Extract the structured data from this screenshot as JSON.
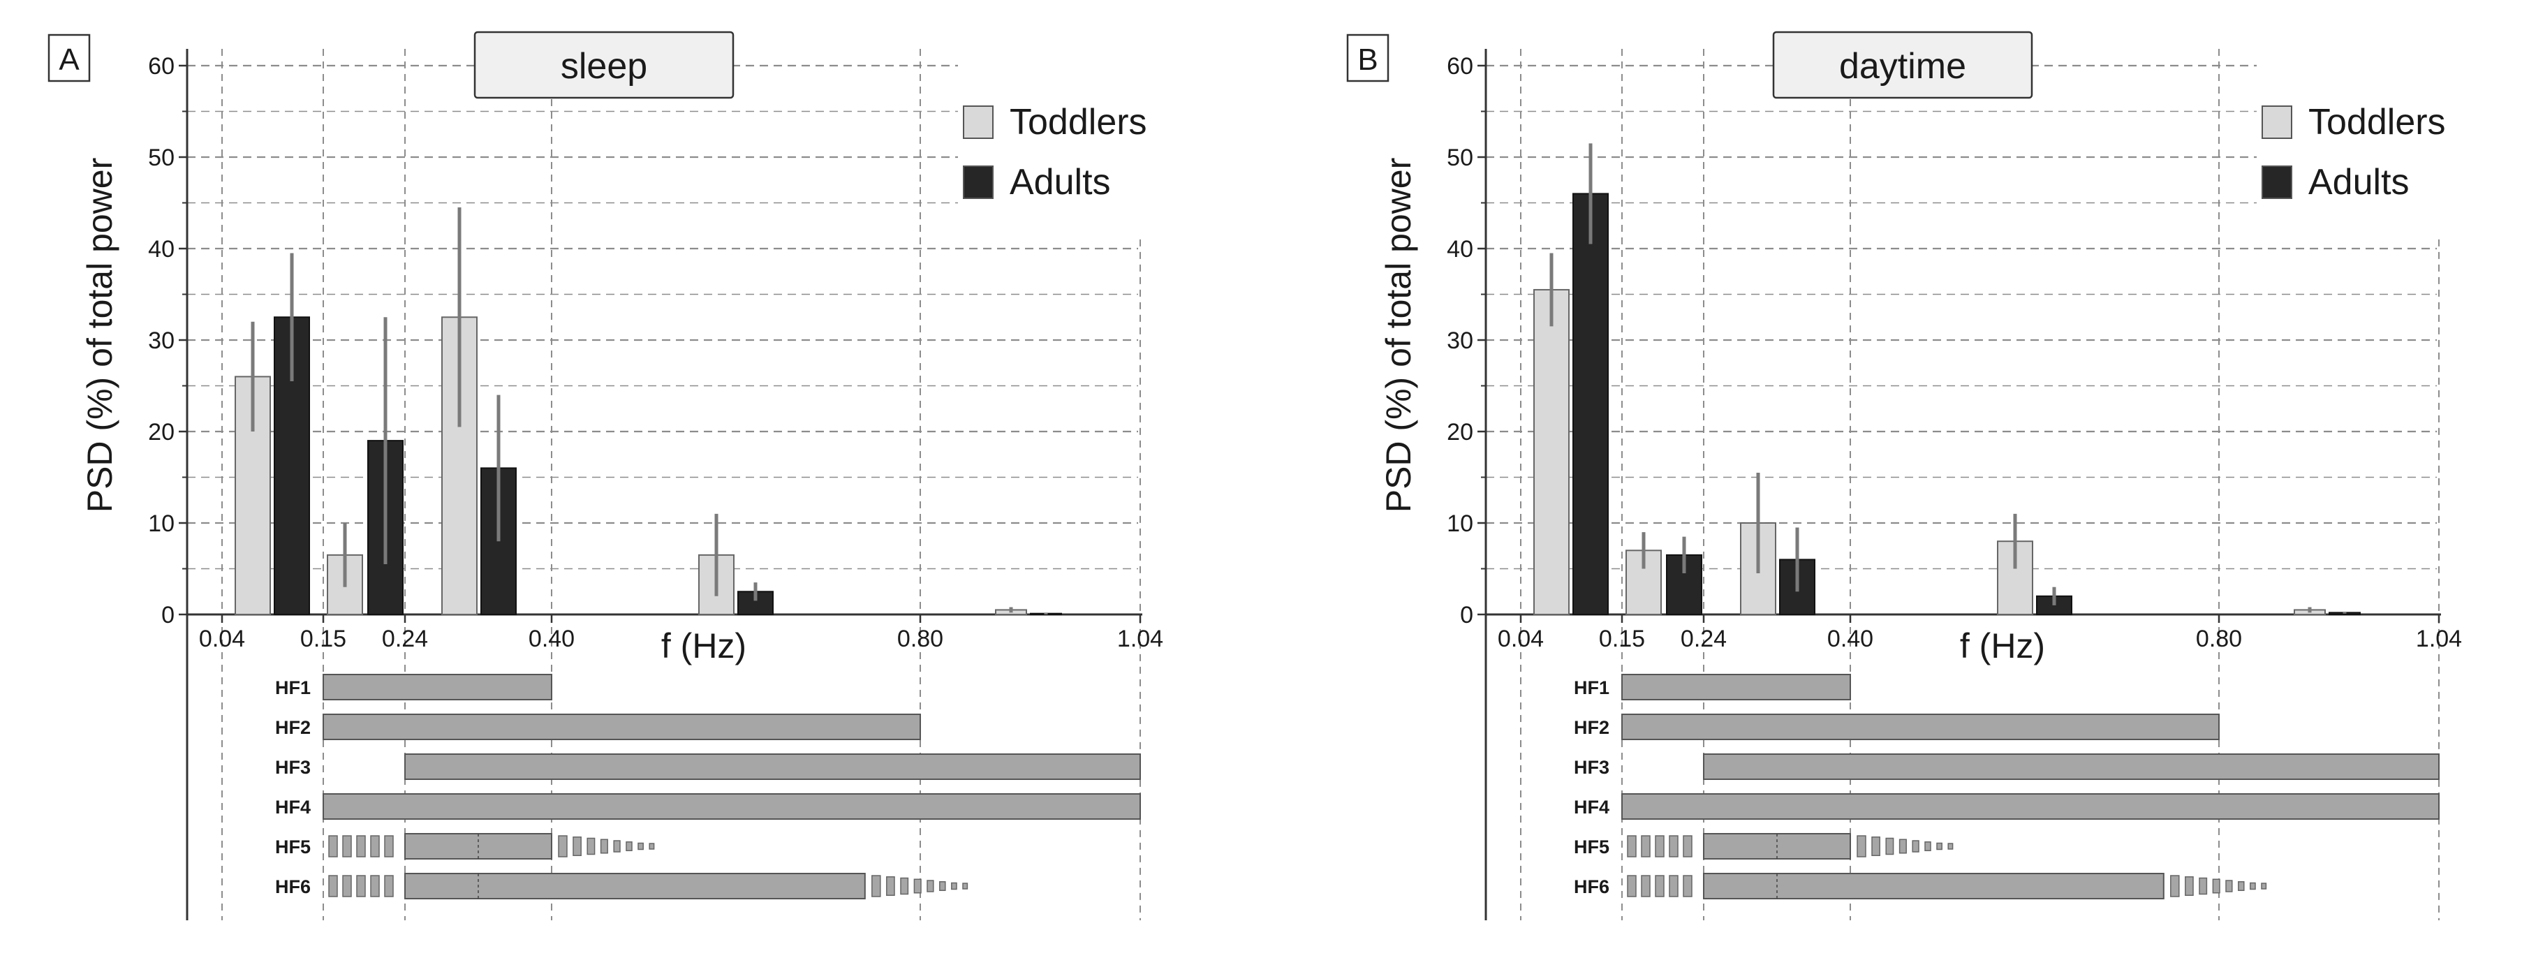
{
  "figure": {
    "x_axis_label": "f (Hz)",
    "y_axis_label": "PSD (%) of total power",
    "x_ticks": [
      0.04,
      0.15,
      0.24,
      0.4,
      0.8,
      1.04
    ],
    "x_tick_labels": [
      "0.04",
      "0.15",
      "0.24",
      "0.40",
      "0.80",
      "1.04"
    ],
    "y_ticks": [
      0,
      10,
      20,
      30,
      40,
      50,
      60
    ],
    "legend": [
      {
        "label": "Toddlers",
        "color": "#d9d9d9"
      },
      {
        "label": "Adults",
        "color": "#262626"
      }
    ],
    "colors": {
      "toddlers": "#d9d9d9",
      "adults": "#262626",
      "band_fill": "#a6a6a6",
      "grid": "#8c8c8c"
    }
  },
  "chart_data": [
    {
      "type": "bar",
      "panel_label": "A",
      "title": "sleep",
      "xlabel": "f (Hz)",
      "ylabel": "PSD (%) of total power",
      "ylim": [
        0,
        60
      ],
      "xlim": [
        0,
        1.04
      ],
      "legend_position": "top-right",
      "categories": [
        "0.04-0.15",
        "0.15-0.24",
        "0.24-0.40",
        "0.40-0.80",
        "0.80-1.04"
      ],
      "series": [
        {
          "name": "Toddlers",
          "values": [
            26,
            6.5,
            32.5,
            6.5,
            0.5
          ],
          "errors": [
            6,
            3.5,
            12,
            4.5,
            0.3
          ]
        },
        {
          "name": "Adults",
          "values": [
            32.5,
            19,
            16,
            2.5,
            0.1
          ],
          "errors": [
            7,
            13.5,
            8,
            1,
            0.1
          ]
        }
      ],
      "bands": [
        {
          "name": "HF1",
          "range": [
            0.15,
            0.4
          ]
        },
        {
          "name": "HF2",
          "range": [
            0.15,
            0.8
          ]
        },
        {
          "name": "HF3",
          "range": [
            0.24,
            1.04
          ]
        },
        {
          "name": "HF4",
          "range": [
            0.15,
            1.04
          ]
        },
        {
          "name": "HF5",
          "range": [
            0.24,
            0.4
          ],
          "tapered": true
        },
        {
          "name": "HF6",
          "range": [
            0.24,
            0.74
          ],
          "tapered": true
        }
      ]
    },
    {
      "type": "bar",
      "panel_label": "B",
      "title": "daytime",
      "xlabel": "f (Hz)",
      "ylabel": "PSD (%) of total power",
      "ylim": [
        0,
        60
      ],
      "xlim": [
        0,
        1.04
      ],
      "legend_position": "top-right",
      "categories": [
        "0.04-0.15",
        "0.15-0.24",
        "0.24-0.40",
        "0.40-0.80",
        "0.80-1.04"
      ],
      "series": [
        {
          "name": "Toddlers",
          "values": [
            35.5,
            7,
            10,
            8,
            0.5
          ],
          "errors": [
            4,
            2,
            5.5,
            3,
            0.3
          ]
        },
        {
          "name": "Adults",
          "values": [
            46,
            6.5,
            6,
            2,
            0.2
          ],
          "errors": [
            5.5,
            2,
            3.5,
            1,
            0.1
          ]
        }
      ],
      "bands": [
        {
          "name": "HF1",
          "range": [
            0.15,
            0.4
          ]
        },
        {
          "name": "HF2",
          "range": [
            0.15,
            0.8
          ]
        },
        {
          "name": "HF3",
          "range": [
            0.24,
            1.04
          ]
        },
        {
          "name": "HF4",
          "range": [
            0.15,
            1.04
          ]
        },
        {
          "name": "HF5",
          "range": [
            0.24,
            0.4
          ],
          "tapered": true
        },
        {
          "name": "HF6",
          "range": [
            0.24,
            0.74
          ],
          "tapered": true
        }
      ]
    }
  ]
}
